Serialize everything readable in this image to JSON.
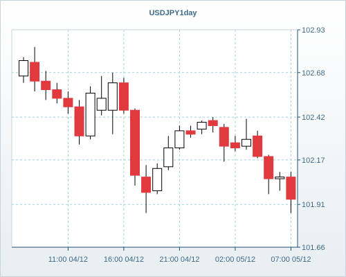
{
  "chart_data": {
    "type": "candlestick",
    "title": "USDJPY1day",
    "ylim": [
      101.66,
      102.93
    ],
    "y_ticks": [
      "102.93",
      "102.68",
      "102.42",
      "102.17",
      "101.91",
      "101.66"
    ],
    "x_ticks": [
      {
        "index": 4,
        "label": "11:00 04/12"
      },
      {
        "index": 9,
        "label": "16:00 04/12"
      },
      {
        "index": 14,
        "label": "21:00 04/12"
      },
      {
        "index": 19,
        "label": "02:00 05/12"
      },
      {
        "index": 24,
        "label": "07:00 05/12"
      }
    ],
    "candles": [
      {
        "open": 102.66,
        "high": 102.77,
        "low": 102.62,
        "close": 102.75
      },
      {
        "open": 102.74,
        "high": 102.83,
        "low": 102.57,
        "close": 102.63
      },
      {
        "open": 102.63,
        "high": 102.69,
        "low": 102.52,
        "close": 102.58
      },
      {
        "open": 102.58,
        "high": 102.62,
        "low": 102.5,
        "close": 102.53
      },
      {
        "open": 102.53,
        "high": 102.57,
        "low": 102.44,
        "close": 102.48
      },
      {
        "open": 102.48,
        "high": 102.52,
        "low": 102.26,
        "close": 102.31
      },
      {
        "open": 102.31,
        "high": 102.6,
        "low": 102.29,
        "close": 102.56
      },
      {
        "open": 102.46,
        "high": 102.66,
        "low": 102.43,
        "close": 102.53
      },
      {
        "open": 102.46,
        "high": 102.68,
        "low": 102.32,
        "close": 102.62
      },
      {
        "open": 102.62,
        "high": 102.65,
        "low": 102.44,
        "close": 102.46
      },
      {
        "open": 102.46,
        "high": 102.47,
        "low": 102.02,
        "close": 102.08
      },
      {
        "open": 102.07,
        "high": 102.14,
        "low": 101.86,
        "close": 101.98
      },
      {
        "open": 101.99,
        "high": 102.15,
        "low": 101.97,
        "close": 102.12
      },
      {
        "open": 102.13,
        "high": 102.31,
        "low": 102.11,
        "close": 102.24
      },
      {
        "open": 102.24,
        "high": 102.37,
        "low": 102.23,
        "close": 102.34
      },
      {
        "open": 102.34,
        "high": 102.37,
        "low": 102.3,
        "close": 102.32
      },
      {
        "open": 102.35,
        "high": 102.4,
        "low": 102.32,
        "close": 102.39
      },
      {
        "open": 102.4,
        "high": 102.42,
        "low": 102.33,
        "close": 102.37
      },
      {
        "open": 102.36,
        "high": 102.38,
        "low": 102.16,
        "close": 102.25
      },
      {
        "open": 102.27,
        "high": 102.31,
        "low": 102.22,
        "close": 102.24
      },
      {
        "open": 102.25,
        "high": 102.41,
        "low": 102.23,
        "close": 102.29
      },
      {
        "open": 102.31,
        "high": 102.34,
        "low": 102.18,
        "close": 102.19
      },
      {
        "open": 102.19,
        "high": 102.2,
        "low": 101.97,
        "close": 102.06
      },
      {
        "open": 102.06,
        "high": 102.1,
        "low": 101.99,
        "close": 102.07
      },
      {
        "open": 102.07,
        "high": 102.1,
        "low": 101.86,
        "close": 101.94
      }
    ],
    "colors": {
      "bear_fill": "#e03a3e",
      "bull_fill": "#ffffff",
      "candle_stroke": "#000000",
      "grid": "#9fd3d8",
      "axis": "#1f4f6e",
      "text": "#3f6a86"
    },
    "grid": true
  }
}
